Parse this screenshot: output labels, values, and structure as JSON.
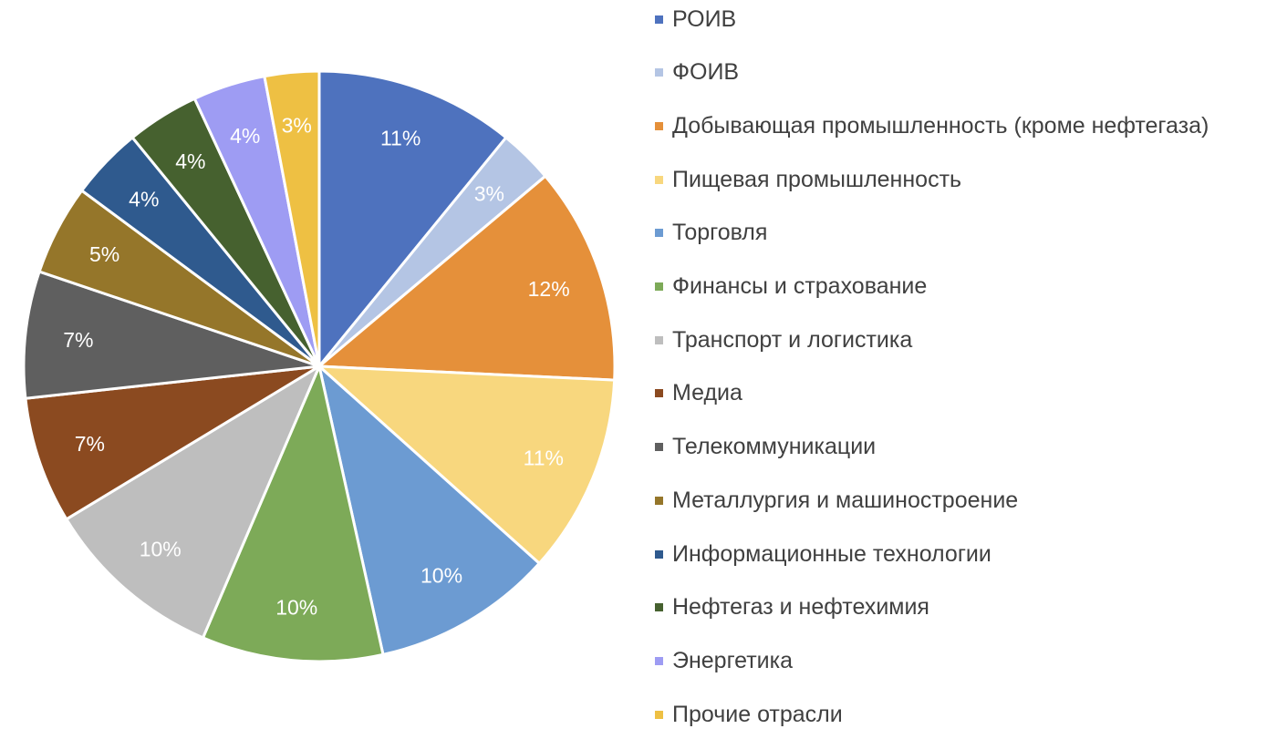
{
  "chart_data": {
    "type": "pie",
    "title": "",
    "legend_position": "right",
    "categories": [
      "РОИВ",
      "ФОИВ",
      "Добывающая промышленность (кроме нефтегаза)",
      "Пищевая промышленность",
      "Торговля",
      "Финансы и страхование",
      "Транспорт и логистика",
      "Медиа",
      "Телекоммуникации",
      "Металлургия и машиностроение",
      "Информационные технологии",
      "Нефтегаз и нефтехимия",
      "Энергетика",
      "Прочие отрасли"
    ],
    "values": [
      11,
      3,
      12,
      11,
      10,
      10,
      10,
      7,
      7,
      5,
      4,
      4,
      4,
      3
    ],
    "data_labels": [
      "11%",
      "3%",
      "12%",
      "11%",
      "10%",
      "10%",
      "10%",
      "7%",
      "7%",
      "5%",
      "4%",
      "4%",
      "4%",
      "3%"
    ],
    "colors": [
      "#4E72BE",
      "#B4C5E4",
      "#E5903A",
      "#F8D77E",
      "#6C9BD2",
      "#7DAA58",
      "#BEBEBE",
      "#8B4A20",
      "#5F5F5F",
      "#95762A",
      "#2F5A8E",
      "#46612F",
      "#9E9CF3",
      "#EEC043"
    ]
  }
}
